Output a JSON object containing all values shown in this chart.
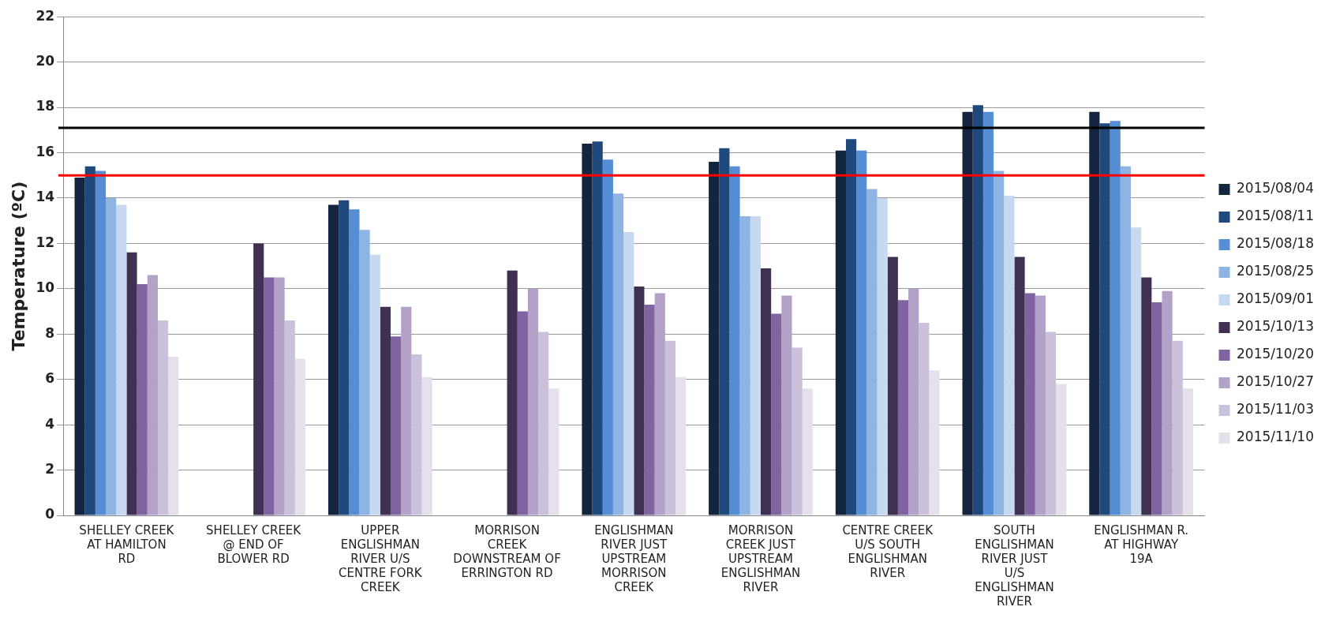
{
  "chart_data": {
    "type": "bar",
    "ylabel": "Temperature (ºC)",
    "categories": [
      "SHELLEY CREEK AT HAMILTON RD",
      "SHELLEY CREEK @ END OF BLOWER RD",
      "UPPER ENGLISHMAN RIVER U/S CENTRE FORK CREEK",
      "MORRISON CREEK DOWNSTREAM OF ERRINGTON RD",
      "ENGLISHMAN RIVER JUST UPSTREAM MORRISON CREEK",
      "MORRISON CREEK JUST UPSTREAM ENGLISHMAN RIVER",
      "CENTRE CREEK U/S SOUTH ENGLISHMAN RIVER",
      "SOUTH ENGLISHMAN RIVER JUST U/S ENGLISHMAN RIVER",
      "ENGLISHMAN R. AT HIGHWAY 19A"
    ],
    "series": [
      {
        "name": "2015/08/04",
        "color": "#14263f",
        "values": [
          14.9,
          null,
          13.7,
          null,
          16.4,
          15.6,
          16.1,
          17.8,
          17.8
        ]
      },
      {
        "name": "2015/08/11",
        "color": "#1f497d",
        "values": [
          15.4,
          null,
          13.9,
          null,
          16.5,
          16.2,
          16.6,
          18.1,
          17.3
        ]
      },
      {
        "name": "2015/08/18",
        "color": "#558ed5",
        "values": [
          15.2,
          null,
          13.5,
          null,
          15.7,
          15.4,
          16.1,
          17.8,
          17.4
        ]
      },
      {
        "name": "2015/08/25",
        "color": "#8eb4e3",
        "values": [
          14.0,
          null,
          12.6,
          null,
          14.2,
          13.2,
          14.4,
          15.2,
          15.4
        ]
      },
      {
        "name": "2015/09/01",
        "color": "#c6d9f1",
        "values": [
          13.7,
          null,
          11.5,
          null,
          12.5,
          13.2,
          14.0,
          14.1,
          12.7
        ]
      },
      {
        "name": "2015/10/13",
        "color": "#403152",
        "values": [
          11.6,
          12.0,
          9.2,
          10.8,
          10.1,
          10.9,
          11.4,
          11.4,
          10.5
        ]
      },
      {
        "name": "2015/10/20",
        "color": "#8064a2",
        "values": [
          10.2,
          10.5,
          7.9,
          9.0,
          9.3,
          8.9,
          9.5,
          9.8,
          9.4
        ]
      },
      {
        "name": "2015/10/27",
        "color": "#b3a2c7",
        "values": [
          10.6,
          10.5,
          9.2,
          10.0,
          9.8,
          9.7,
          10.0,
          9.7,
          9.9
        ]
      },
      {
        "name": "2015/11/03",
        "color": "#ccc1da",
        "values": [
          8.6,
          8.6,
          7.1,
          8.1,
          7.7,
          7.4,
          8.5,
          8.1,
          7.7
        ]
      },
      {
        "name": "2015/11/10",
        "color": "#e6e0ec",
        "values": [
          7.0,
          6.9,
          6.1,
          5.6,
          6.1,
          5.6,
          6.4,
          5.8,
          5.6
        ]
      }
    ],
    "ylim": [
      0,
      22
    ],
    "yticks": [
      0,
      2,
      4,
      6,
      8,
      10,
      12,
      14,
      16,
      18,
      20,
      22
    ],
    "ref_lines": [
      {
        "axis": "y",
        "value": 17.1,
        "color": "#000000"
      },
      {
        "axis": "y",
        "value": 15,
        "color": "#ff0000"
      }
    ],
    "grid": "y",
    "legend": "right"
  }
}
